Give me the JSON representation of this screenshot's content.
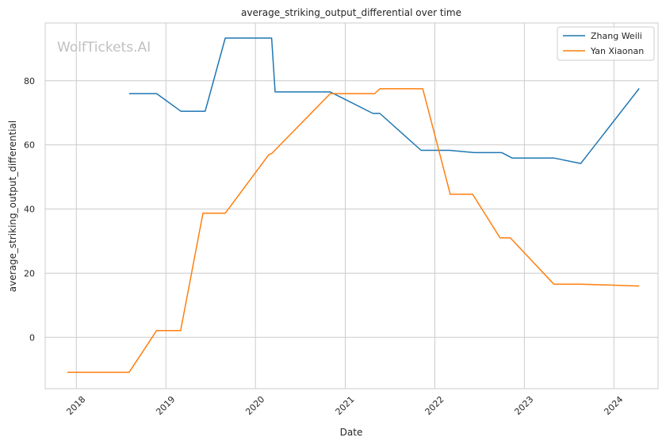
{
  "chart_data": {
    "type": "line",
    "title": "average_striking_output_differential over time",
    "xlabel": "Date",
    "ylabel": "average_striking_output_differential",
    "watermark": "WolfTickets.AI",
    "grid": true,
    "legend_position": "top-right",
    "xlim": [
      "2017-08-27",
      "2024-06-29"
    ],
    "ylim": [
      -16,
      98
    ],
    "x_ticks": [
      "2018",
      "2019",
      "2020",
      "2021",
      "2022",
      "2023",
      "2024"
    ],
    "x_tick_dates": [
      "2018-01-01",
      "2019-01-01",
      "2020-01-01",
      "2021-01-01",
      "2022-01-01",
      "2023-01-01",
      "2024-01-01"
    ],
    "y_ticks": [
      0,
      20,
      40,
      60,
      80
    ],
    "series": [
      {
        "name": "Zhang Weili",
        "color": "#1f77b4",
        "points": [
          {
            "x": "2018-08-04",
            "y": 76.0
          },
          {
            "x": "2018-11-24",
            "y": 76.0
          },
          {
            "x": "2019-03-03",
            "y": 70.5
          },
          {
            "x": "2019-06-10",
            "y": 70.5
          },
          {
            "x": "2019-08-31",
            "y": 93.3
          },
          {
            "x": "2020-03-07",
            "y": 93.3
          },
          {
            "x": "2020-03-21",
            "y": 76.5
          },
          {
            "x": "2020-11-01",
            "y": 76.5
          },
          {
            "x": "2021-04-24",
            "y": 69.8
          },
          {
            "x": "2021-05-22",
            "y": 69.8
          },
          {
            "x": "2021-11-06",
            "y": 58.3
          },
          {
            "x": "2022-03-01",
            "y": 58.3
          },
          {
            "x": "2022-06-11",
            "y": 57.6
          },
          {
            "x": "2022-10-01",
            "y": 57.6
          },
          {
            "x": "2022-11-12",
            "y": 55.9
          },
          {
            "x": "2023-05-01",
            "y": 55.9
          },
          {
            "x": "2023-08-19",
            "y": 54.2
          },
          {
            "x": "2024-04-13",
            "y": 77.6
          }
        ]
      },
      {
        "name": "Yan Xiaonan",
        "color": "#ff7f0e",
        "points": [
          {
            "x": "2017-11-25",
            "y": -10.9
          },
          {
            "x": "2018-08-04",
            "y": -10.9
          },
          {
            "x": "2018-11-24",
            "y": 2.1
          },
          {
            "x": "2019-03-02",
            "y": 2.1
          },
          {
            "x": "2019-06-01",
            "y": 38.7
          },
          {
            "x": "2019-08-31",
            "y": 38.7
          },
          {
            "x": "2020-02-25",
            "y": 57.0
          },
          {
            "x": "2020-03-07",
            "y": 57.3
          },
          {
            "x": "2020-11-01",
            "y": 76.0
          },
          {
            "x": "2020-11-21",
            "y": 76.0
          },
          {
            "x": "2021-05-01",
            "y": 76.0
          },
          {
            "x": "2021-05-22",
            "y": 77.5
          },
          {
            "x": "2021-11-13",
            "y": 77.5
          },
          {
            "x": "2022-03-05",
            "y": 44.6
          },
          {
            "x": "2022-06-04",
            "y": 44.6
          },
          {
            "x": "2022-09-24",
            "y": 31.0
          },
          {
            "x": "2022-11-05",
            "y": 31.0
          },
          {
            "x": "2023-05-01",
            "y": 16.6
          },
          {
            "x": "2023-08-19",
            "y": 16.6
          },
          {
            "x": "2024-04-13",
            "y": 16.0
          }
        ]
      }
    ]
  }
}
